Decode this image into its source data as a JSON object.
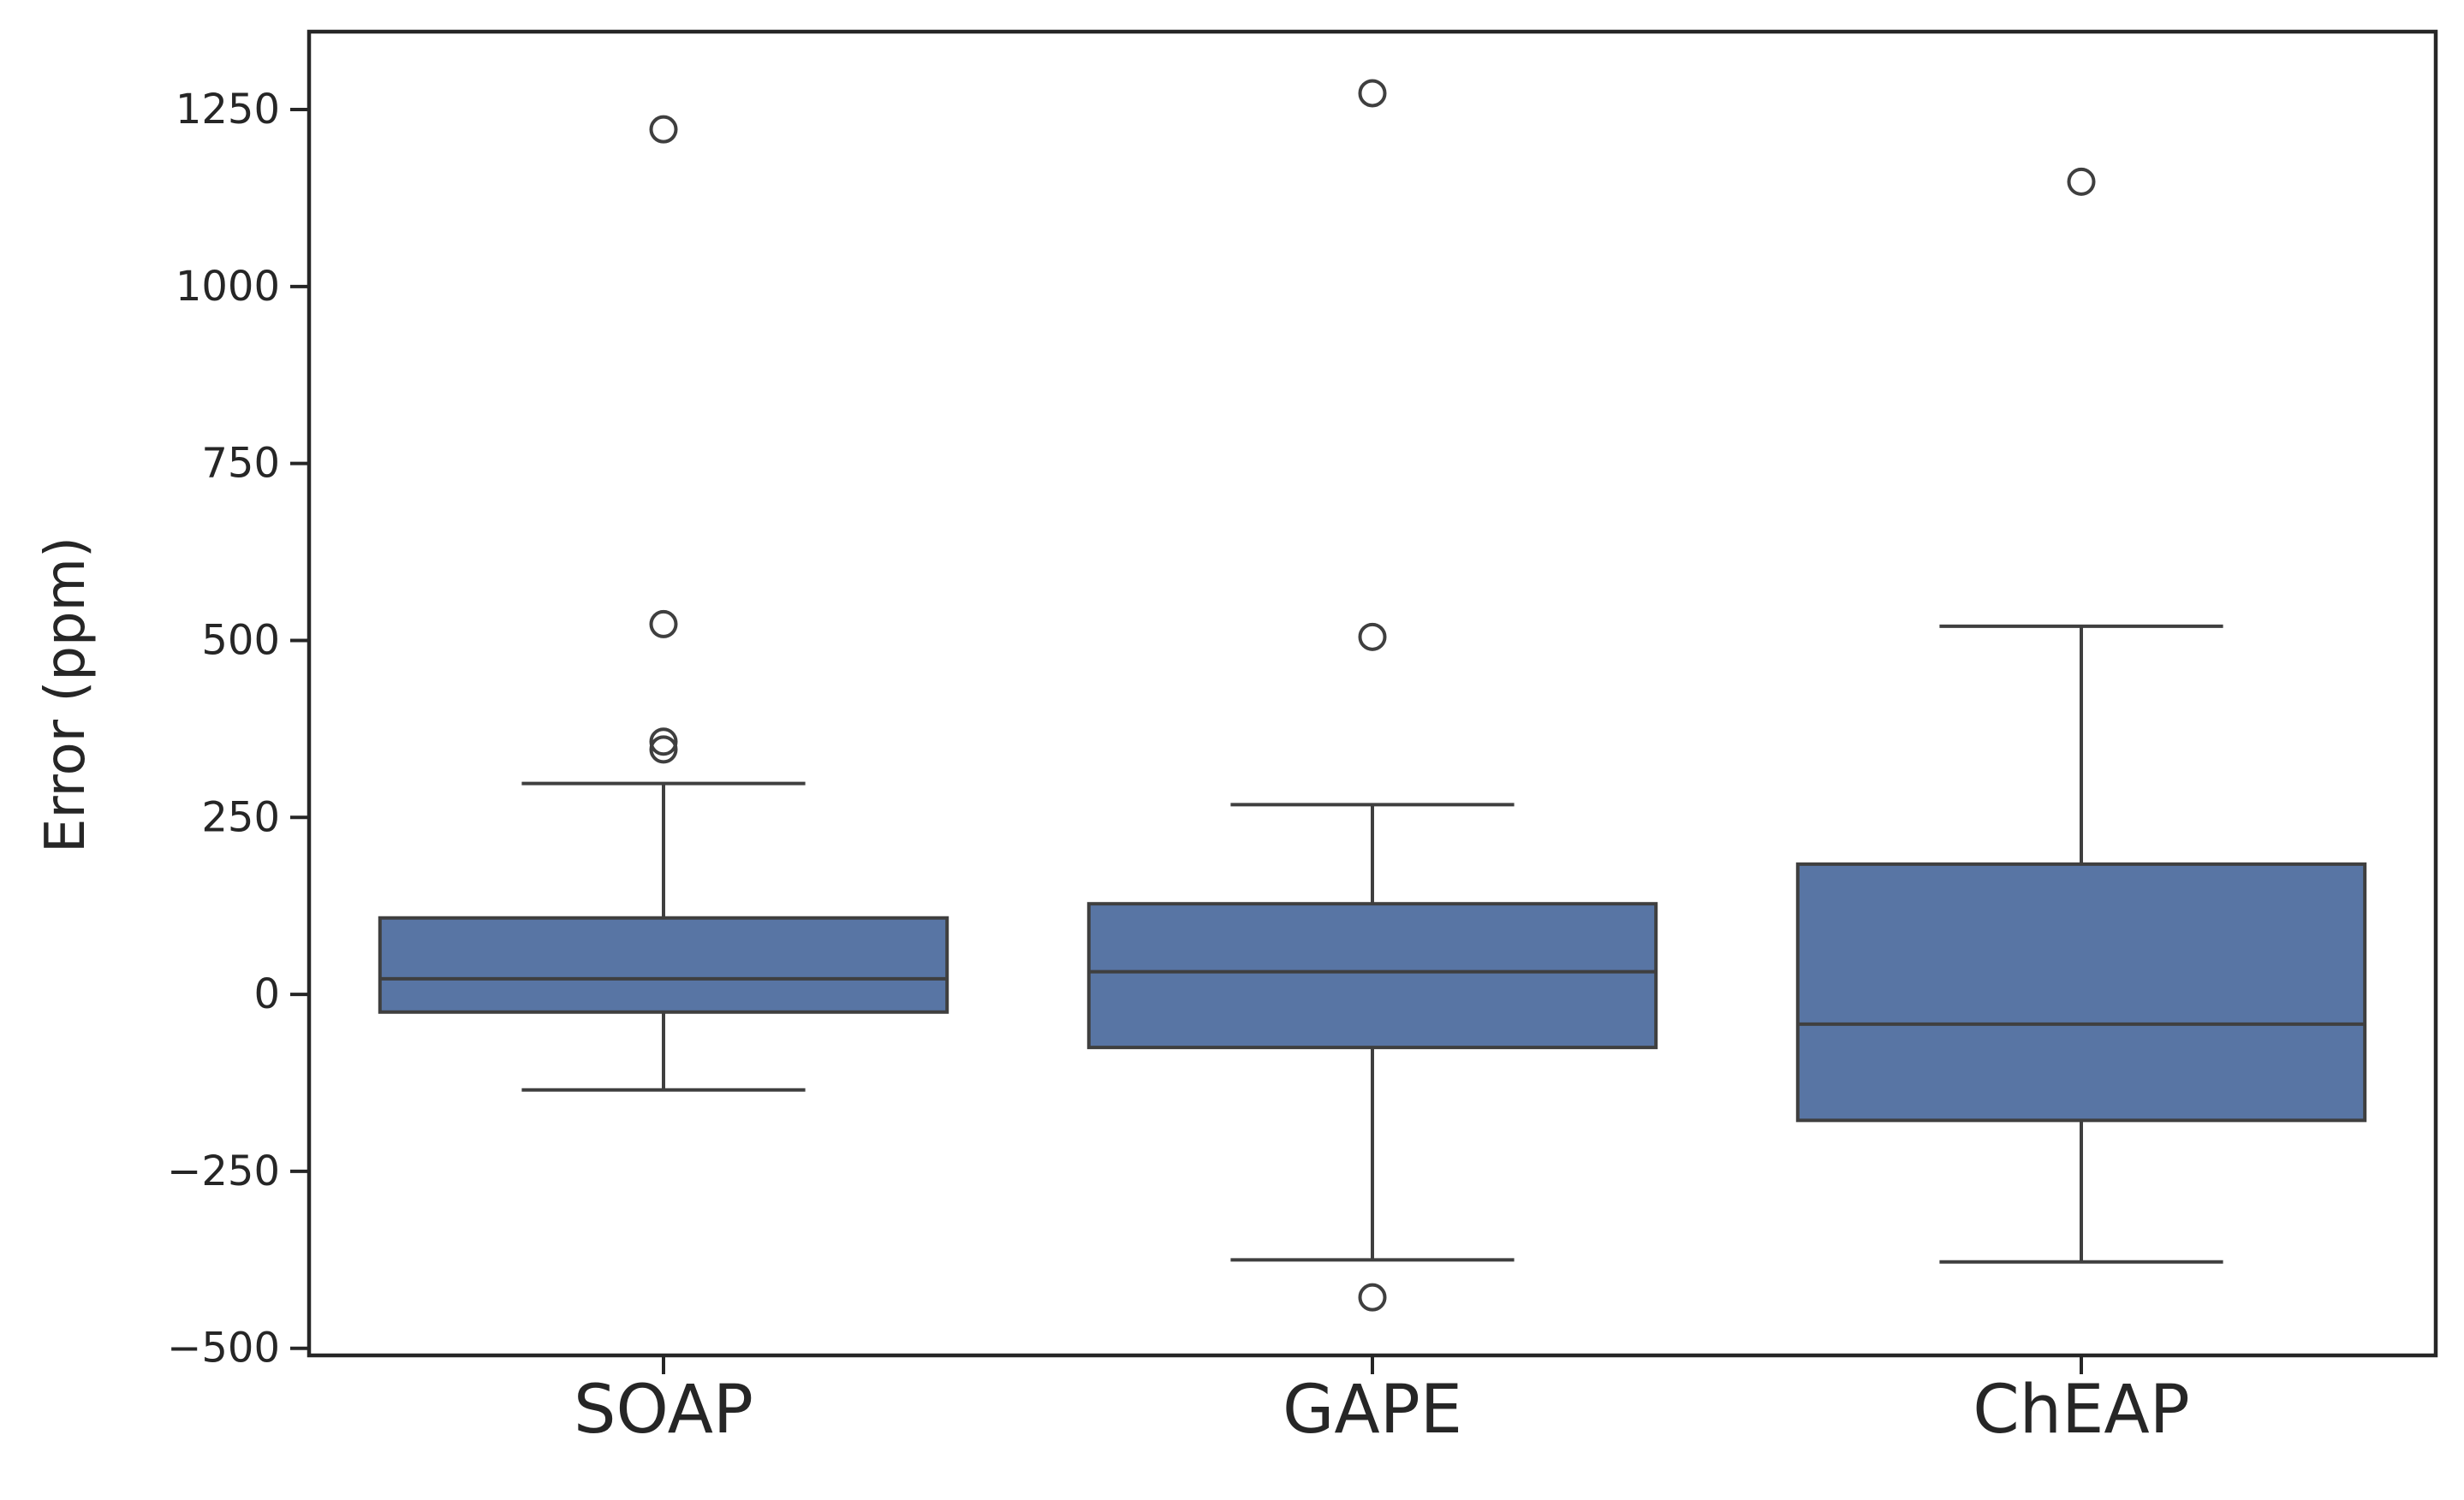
{
  "chart_data": {
    "type": "box",
    "ylabel": "Error (ppm)",
    "xlabel": "",
    "ylim": [
      -510,
      1360
    ],
    "yticks": [
      -500,
      -250,
      0,
      250,
      500,
      750,
      1000,
      1250
    ],
    "ytick_labels": [
      "−500",
      "−250",
      "0",
      "250",
      "500",
      "750",
      "1000",
      "1250"
    ],
    "categories": [
      "SOAP",
      "GAPE",
      "ChEAP"
    ],
    "box_color": "#5875a4",
    "line_color": "#3f3f3f",
    "grid": false,
    "boxes": [
      {
        "category": "SOAP",
        "whisker_low": -135,
        "q1": -25,
        "median": 22,
        "q3": 108,
        "whisker_high": 298,
        "outliers": [
          1222,
          523,
          357,
          346
        ]
      },
      {
        "category": "GAPE",
        "whisker_low": -375,
        "q1": -75,
        "median": 32,
        "q3": 128,
        "whisker_high": 268,
        "outliers": [
          1273,
          505,
          -428
        ]
      },
      {
        "category": "ChEAP",
        "whisker_low": -378,
        "q1": -178,
        "median": -42,
        "q3": 184,
        "whisker_high": 520,
        "outliers": [
          1148
        ]
      }
    ]
  }
}
